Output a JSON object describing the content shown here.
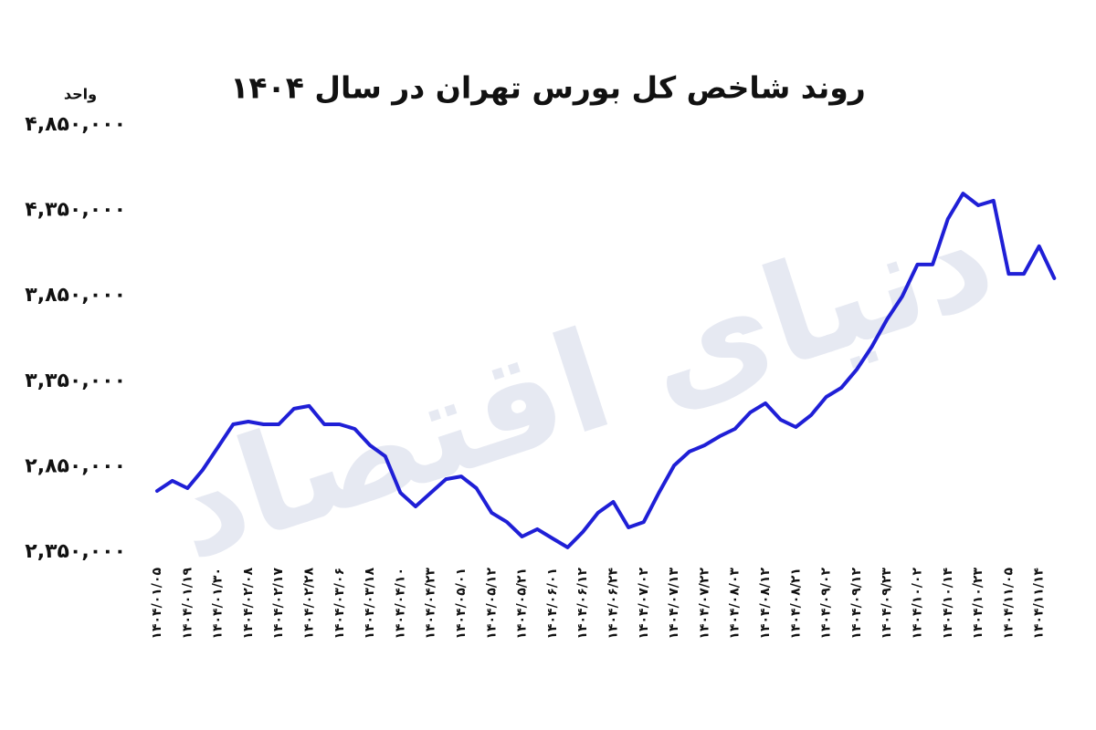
{
  "chart_data": {
    "type": "line",
    "title": "روند شاخص کل بورس تهران در سال ۱۴۰۴",
    "y_unit": "واحد",
    "watermark": "دنیای اقتصاد",
    "categories": [
      "۱۴۰۴/۰۱/۰۵",
      null,
      "۱۴۰۴/۰۱/۱۹",
      null,
      "۱۴۰۴/۰۱/۳۰",
      null,
      "۱۴۰۴/۰۲/۰۸",
      null,
      "۱۴۰۴/۰۲/۱۷",
      null,
      "۱۴۰۴/۰۲/۲۸",
      null,
      "۱۴۰۴/۰۳/۰۶",
      null,
      "۱۴۰۴/۰۳/۱۸",
      null,
      "۱۴۰۴/۰۴/۱۰",
      null,
      "۱۴۰۴/۰۴/۲۳",
      null,
      "۱۴۰۴/۰۵/۰۱",
      null,
      "۱۴۰۴/۰۵/۱۲",
      null,
      "۱۴۰۴/۰۵/۲۱",
      null,
      "۱۴۰۴/۰۶/۰۱",
      null,
      "۱۴۰۴/۰۶/۱۲",
      null,
      "۱۴۰۴/۰۶/۲۴",
      null,
      "۱۴۰۴/۰۷/۰۲",
      null,
      "۱۴۰۴/۰۷/۱۳",
      null,
      "۱۴۰۴/۰۷/۲۲",
      null,
      "۱۴۰۴/۰۸/۰۳",
      null,
      "۱۴۰۴/۰۸/۱۲",
      null,
      "۱۴۰۴/۰۸/۲۱",
      null,
      "۱۴۰۴/۰۹/۰۲",
      null,
      "۱۴۰۴/۰۹/۱۲",
      null,
      "۱۴۰۴/۰۹/۲۳",
      null,
      "۱۴۰۴/۱۰/۰۲",
      null,
      "۱۴۰۴/۱۰/۱۴",
      null,
      "۱۴۰۴/۱۰/۲۳",
      null,
      "۱۴۰۴/۱۱/۰۵",
      null,
      "۱۴۰۴/۱۱/۱۴",
      null
    ],
    "series": [
      {
        "name": "شاخص کل",
        "color": "#1f1fd6",
        "values": [
          2708000,
          2767000,
          2724000,
          2831000,
          2964000,
          3098000,
          3114000,
          3098000,
          3098000,
          3189000,
          3205000,
          3098000,
          3098000,
          3071000,
          2975000,
          2911000,
          2697000,
          2617000,
          2697000,
          2777000,
          2793000,
          2724000,
          2580000,
          2526000,
          2441000,
          2484000,
          2430000,
          2377000,
          2468000,
          2580000,
          2644000,
          2494000,
          2526000,
          2697000,
          2857000,
          2938000,
          2975000,
          3028000,
          3071000,
          3167000,
          3221000,
          3125000,
          3082000,
          3151000,
          3258000,
          3312000,
          3418000,
          3552000,
          3712000,
          3846000,
          4033000,
          4033000,
          4300000,
          4449000,
          4380000,
          4407000,
          3979000,
          3979000,
          4140000,
          3953000
        ]
      }
    ],
    "ylim": [
      2350000,
      4850000
    ],
    "yticks": [
      {
        "value": 2350000,
        "label": "۲,۳۵۰,۰۰۰"
      },
      {
        "value": 2850000,
        "label": "۲,۸۵۰,۰۰۰"
      },
      {
        "value": 3350000,
        "label": "۳,۳۵۰,۰۰۰"
      },
      {
        "value": 3850000,
        "label": "۳,۸۵۰,۰۰۰"
      },
      {
        "value": 4350000,
        "label": "۴,۳۵۰,۰۰۰"
      },
      {
        "value": 4850000,
        "label": "۴,۸۵۰,۰۰۰"
      }
    ],
    "grid": false
  }
}
